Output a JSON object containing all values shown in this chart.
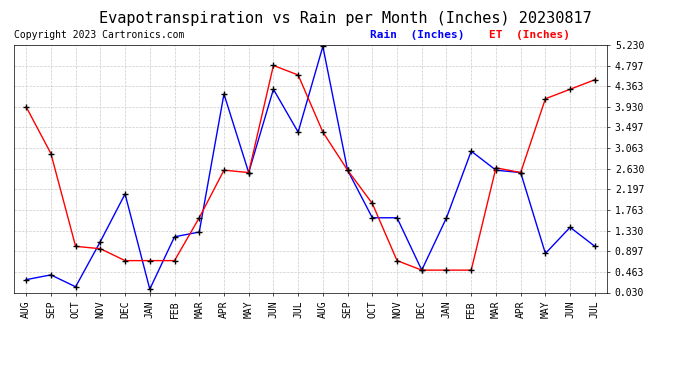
{
  "title": "Evapotranspiration vs Rain per Month (Inches) 20230817",
  "copyright": "Copyright 2023 Cartronics.com",
  "legend_rain": "Rain  (Inches)",
  "legend_et": "ET  (Inches)",
  "months": [
    "AUG",
    "SEP",
    "OCT",
    "NOV",
    "DEC",
    "JAN",
    "FEB",
    "MAR",
    "APR",
    "MAY",
    "JUN",
    "JUL",
    "AUG",
    "SEP",
    "OCT",
    "NOV",
    "DEC",
    "JAN",
    "FEB",
    "MAR",
    "APR",
    "MAY",
    "JUN",
    "JUL"
  ],
  "rain": [
    0.3,
    0.4,
    0.15,
    1.1,
    2.1,
    0.1,
    1.2,
    1.3,
    4.2,
    2.55,
    4.3,
    3.4,
    5.2,
    2.6,
    1.6,
    1.6,
    0.5,
    1.6,
    3.0,
    2.6,
    2.55,
    0.85,
    1.4,
    1.0
  ],
  "et": [
    3.93,
    2.95,
    1.0,
    0.95,
    0.7,
    0.7,
    0.7,
    1.6,
    2.6,
    2.55,
    4.8,
    4.6,
    3.4,
    2.6,
    1.9,
    0.7,
    0.5,
    0.5,
    0.5,
    2.65,
    2.55,
    4.1,
    4.3,
    4.5
  ],
  "rain_color": "#0000ff",
  "et_color": "#ff0000",
  "yticks": [
    0.03,
    0.463,
    0.897,
    1.33,
    1.763,
    2.197,
    2.63,
    3.063,
    3.497,
    3.93,
    4.363,
    4.797,
    5.23
  ],
  "ylim_min": 0.03,
  "ylim_max": 5.23,
  "background_color": "#ffffff",
  "grid_color": "#cccccc",
  "title_fontsize": 11,
  "copyright_fontsize": 7,
  "legend_fontsize": 8,
  "tick_fontsize": 7,
  "marker_color": "#000000"
}
